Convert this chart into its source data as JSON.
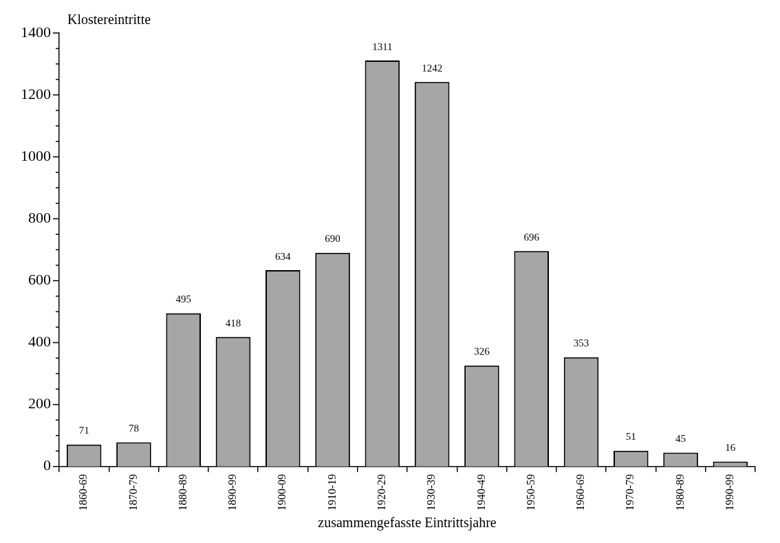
{
  "chart_data": {
    "type": "bar",
    "xlabel": "zusammengefasste Eintrittsjahre",
    "ylabel": "Klostereintritte",
    "categories": [
      "1860-69",
      "1870-79",
      "1880-89",
      "1890-99",
      "1900-09",
      "1910-19",
      "1920-29",
      "1930-39",
      "1940-49",
      "1950-59",
      "1960-69",
      "1970-79",
      "1980-89",
      "1990-99"
    ],
    "values": [
      71,
      78,
      495,
      418,
      634,
      690,
      1311,
      1242,
      326,
      696,
      353,
      51,
      45,
      16
    ],
    "color": "#a6a6a6",
    "ylim": [
      0,
      1400
    ],
    "yticks": [
      0,
      {
        "value": 50,
        "label": null
      },
      {
        "value": 100,
        "label": null
      },
      {
        "value": 150,
        "label": null
      },
      200,
      {
        "value": 250,
        "label": null
      },
      {
        "value": 300,
        "label": null
      },
      {
        "value": 350,
        "label": null
      },
      400,
      {
        "value": 450,
        "label": null
      },
      {
        "value": 500,
        "label": null
      },
      {
        "value": 550,
        "label": null
      },
      600,
      {
        "value": 650,
        "label": null
      },
      {
        "value": 700,
        "label": null
      },
      {
        "value": 750,
        "label": null
      },
      800,
      {
        "value": 850,
        "label": null
      },
      {
        "value": 900,
        "label": null
      },
      {
        "value": 950,
        "label": null
      },
      1000,
      {
        "value": 1050,
        "label": null
      },
      {
        "value": 1100,
        "label": null
      },
      {
        "value": 1150,
        "label": null
      },
      1200,
      {
        "value": 1250,
        "label": null
      },
      {
        "value": 1300,
        "label": null
      },
      {
        "value": 1350,
        "label": null
      },
      1400
    ],
    "data_labels": true,
    "grid": false,
    "legend": false
  }
}
